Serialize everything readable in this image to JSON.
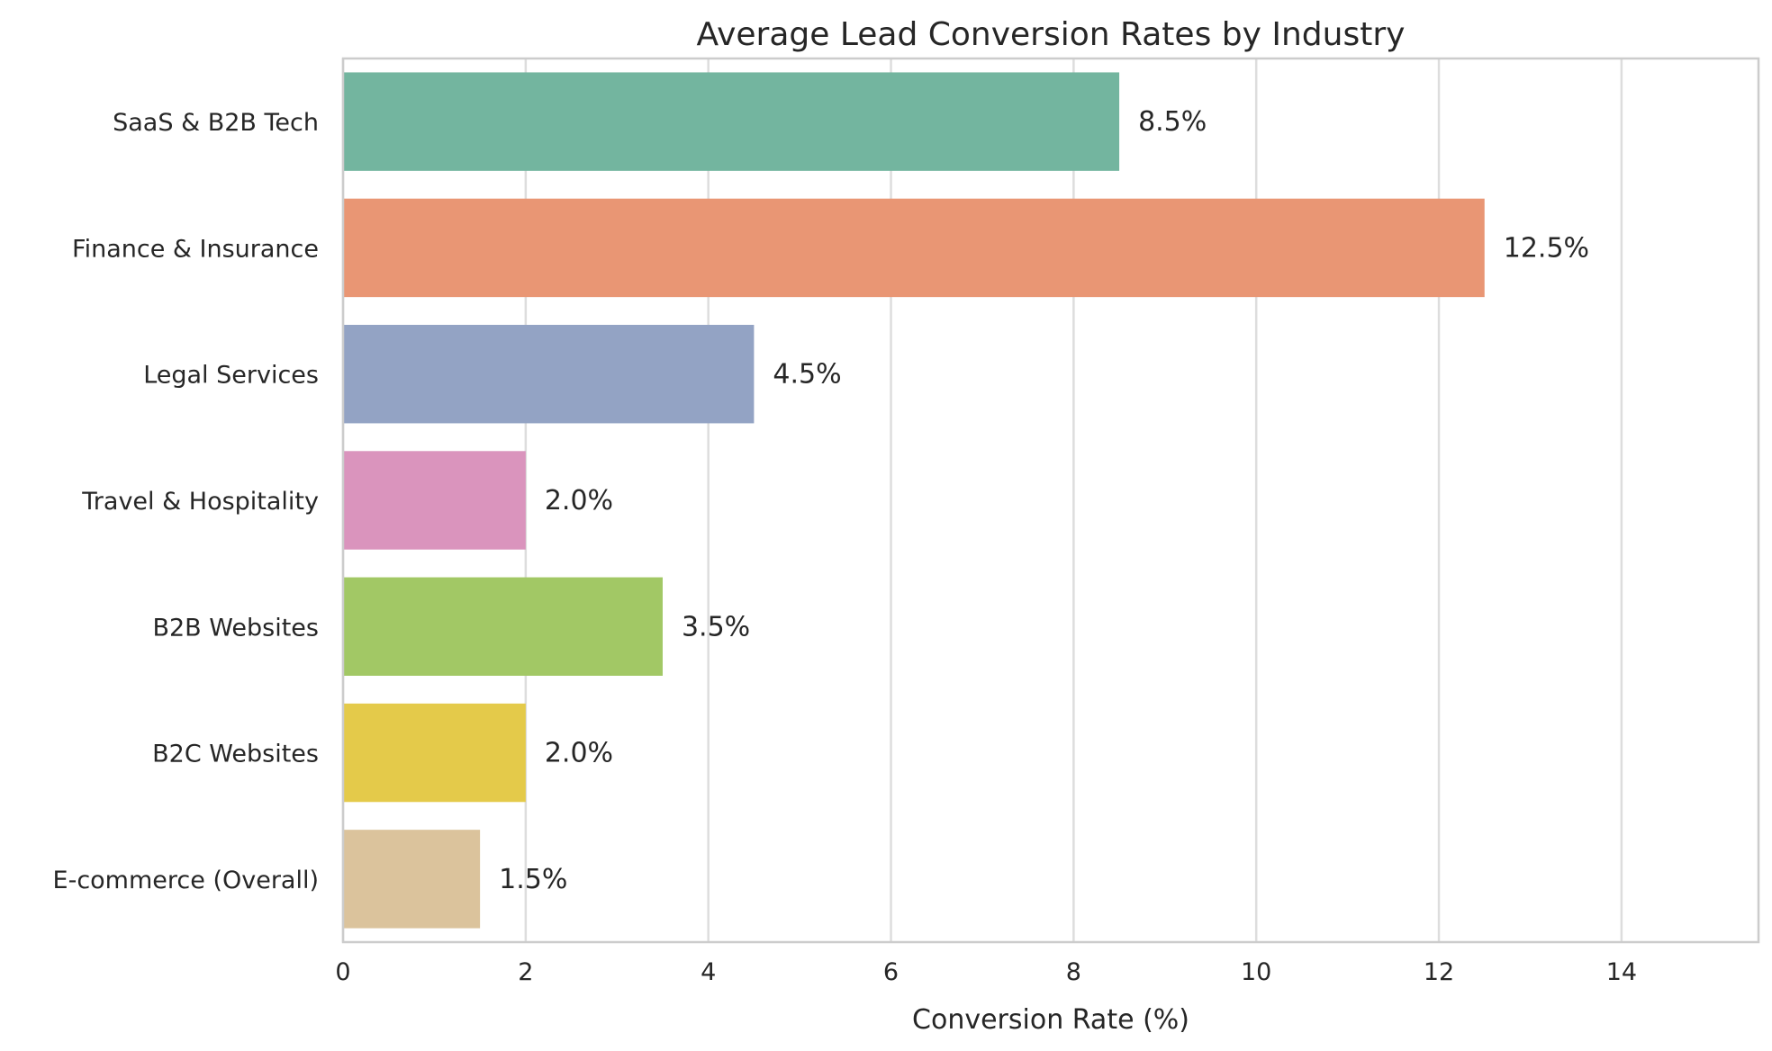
{
  "chart_data": {
    "type": "bar",
    "orientation": "horizontal",
    "title": "Average Lead Conversion Rates by Industry",
    "xlabel": "Conversion Rate (%)",
    "ylabel": "",
    "xlim": [
      0,
      15.5
    ],
    "xticks": [
      0,
      2,
      4,
      6,
      8,
      10,
      12,
      14
    ],
    "grid": true,
    "categories": [
      "SaaS & B2B Tech",
      "Finance & Insurance",
      "Legal Services",
      "Travel & Hospitality",
      "B2B Websites",
      "B2C Websites",
      "E-commerce (Overall)"
    ],
    "values": [
      8.5,
      12.5,
      4.5,
      2.0,
      3.5,
      2.0,
      1.5
    ],
    "data_labels": [
      "8.5%",
      "12.5%",
      "4.5%",
      "2.0%",
      "3.5%",
      "2.0%",
      "1.5%"
    ],
    "colors": [
      "#73b59f",
      "#e99674",
      "#93a3c4",
      "#da94bd",
      "#a2c865",
      "#e4ca4a",
      "#dbc39c"
    ]
  },
  "style": {
    "background": "#ffffff",
    "grid_color": "#dddddd",
    "spine_color": "#cccccc",
    "text_color": "#262626"
  }
}
